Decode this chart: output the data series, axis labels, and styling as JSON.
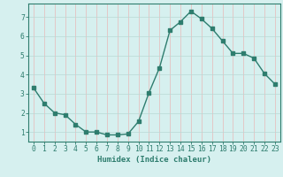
{
  "x": [
    0,
    1,
    2,
    3,
    4,
    5,
    6,
    7,
    8,
    9,
    10,
    11,
    12,
    13,
    14,
    15,
    16,
    17,
    18,
    19,
    20,
    21,
    22,
    23
  ],
  "y": [
    3.3,
    2.5,
    2.0,
    1.9,
    1.4,
    1.0,
    1.0,
    0.85,
    0.85,
    0.9,
    1.55,
    3.05,
    4.35,
    6.3,
    6.75,
    7.3,
    6.9,
    6.4,
    5.75,
    5.1,
    5.1,
    4.85,
    4.05,
    3.5
  ],
  "line_color": "#2e7d6e",
  "marker": "s",
  "markersize": 2.2,
  "linewidth": 1.0,
  "xlabel": "Humidex (Indice chaleur)",
  "xlim": [
    -0.5,
    23.5
  ],
  "ylim": [
    0.5,
    7.7
  ],
  "yticks": [
    1,
    2,
    3,
    4,
    5,
    6,
    7
  ],
  "xticks": [
    0,
    1,
    2,
    3,
    4,
    5,
    6,
    7,
    8,
    9,
    10,
    11,
    12,
    13,
    14,
    15,
    16,
    17,
    18,
    19,
    20,
    21,
    22,
    23
  ],
  "bg_color": "#d6f0ef",
  "grid_color": "#b8d8d5",
  "grid_color_v": "#e8b8b8",
  "grid_linewidth": 0.5,
  "axis_color": "#2e7d6e",
  "tick_color": "#2e7d6e",
  "label_fontsize": 6.5,
  "tick_fontsize": 5.8
}
